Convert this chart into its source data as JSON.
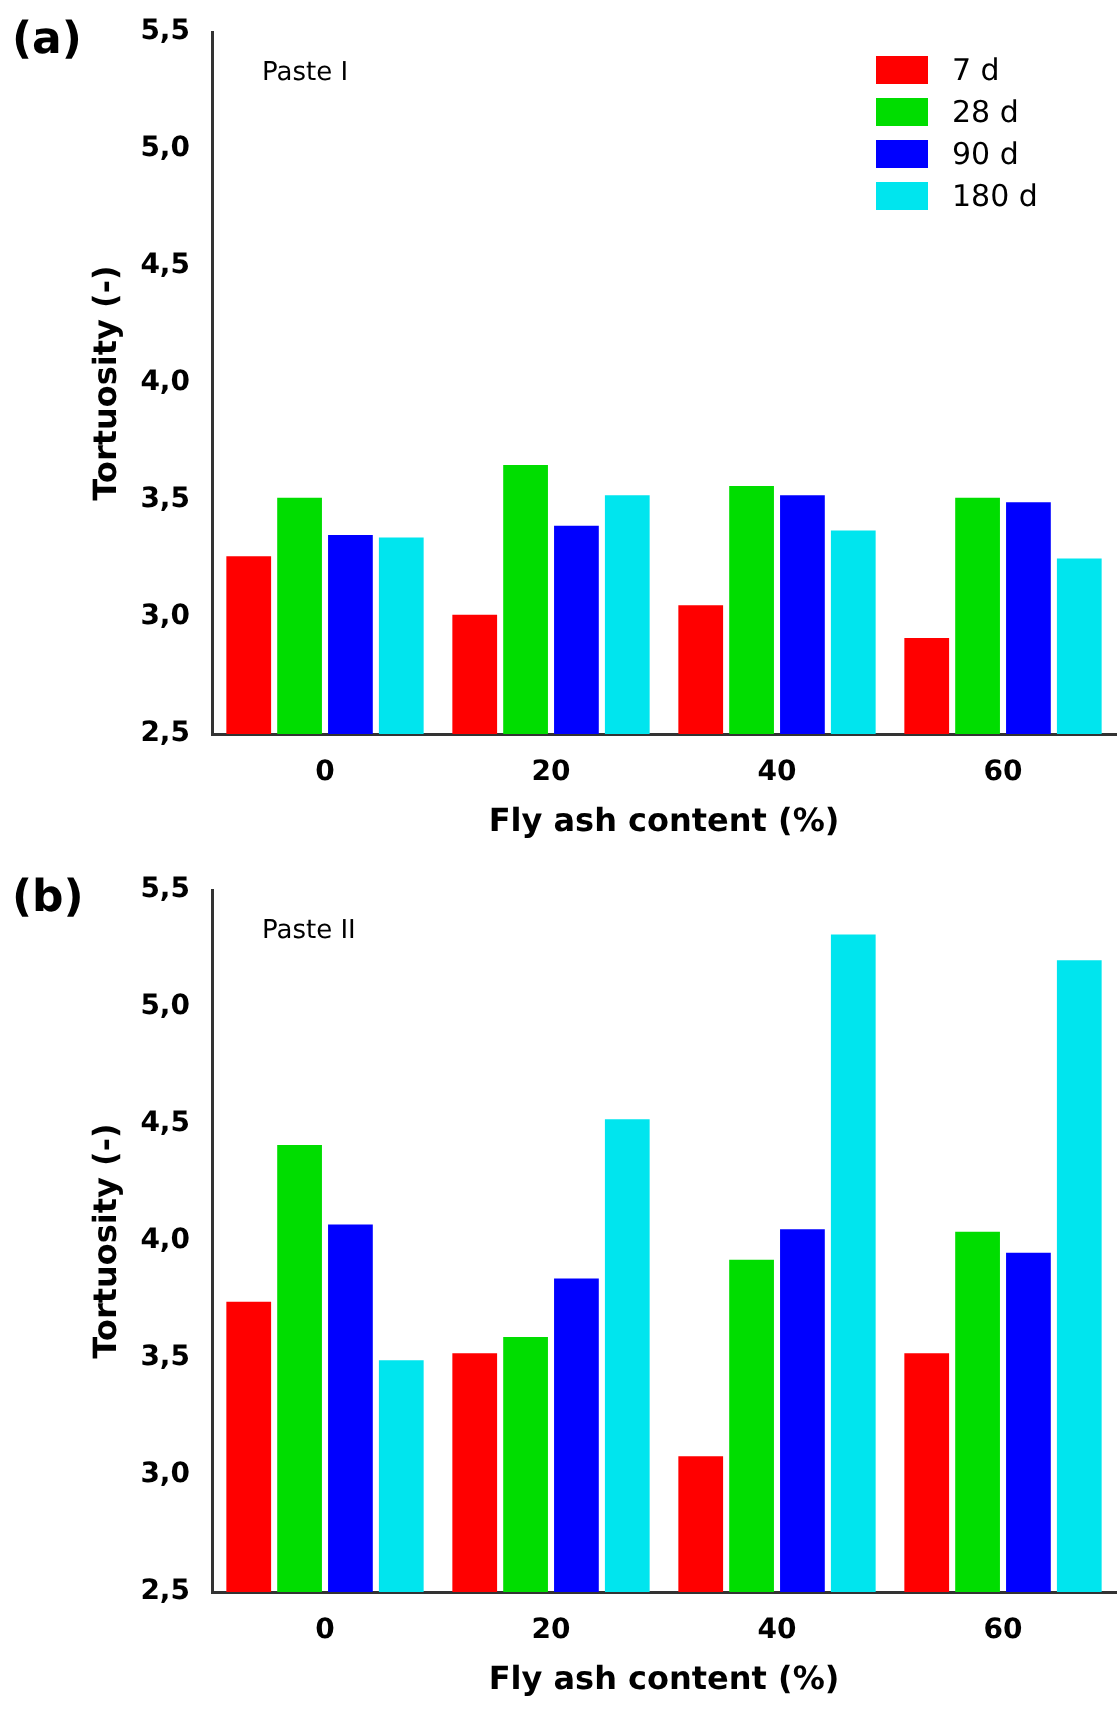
{
  "chart_data": [
    {
      "type": "bar",
      "title": "Paste I",
      "annotations": [
        "(a)"
      ],
      "xlabel": "Fly ash content (%)",
      "ylabel": "Tortuosity (-)",
      "categories": [
        "0",
        "20",
        "40",
        "60"
      ],
      "series": [
        {
          "name": "7 d",
          "color": "#ff0000",
          "values": [
            3.26,
            3.01,
            3.05,
            2.91
          ]
        },
        {
          "name": "28 d",
          "color": "#00dd00",
          "values": [
            3.51,
            3.65,
            3.56,
            3.51
          ]
        },
        {
          "name": "90 d",
          "color": "#0000ff",
          "values": [
            3.35,
            3.39,
            3.52,
            3.49
          ]
        },
        {
          "name": "180 d",
          "color": "#00e5ee",
          "values": [
            3.34,
            3.52,
            3.37,
            3.25
          ]
        }
      ],
      "ylim": [
        2.5,
        5.5
      ],
      "yticks": [
        {
          "value": 2.5,
          "label": "2,5"
        },
        {
          "value": 3,
          "label": "3,0"
        },
        {
          "value": 3.5,
          "label": "3,5"
        },
        {
          "value": 4,
          "label": "4,0"
        },
        {
          "value": 4.5,
          "label": "4,5"
        },
        {
          "value": 5,
          "label": "5,0"
        },
        {
          "value": 5.5,
          "label": "5,5"
        }
      ],
      "grid": false,
      "legend": "top right"
    },
    {
      "type": "bar",
      "title": "Paste II",
      "annotations": [
        "(b)"
      ],
      "xlabel": "Fly ash content (%)",
      "ylabel": "Tortuosity (-)",
      "categories": [
        "0",
        "20",
        "40",
        "60"
      ],
      "series": [
        {
          "color": "#ff0000",
          "values": [
            3.74,
            3.52,
            3.08,
            3.52
          ]
        },
        {
          "color": "#00dd00",
          "values": [
            4.41,
            3.59,
            3.92,
            4.04
          ]
        },
        {
          "color": "#0000ff",
          "values": [
            4.07,
            3.84,
            4.05,
            3.95
          ]
        },
        {
          "color": "#00e5ee",
          "values": [
            3.49,
            4.52,
            5.31,
            5.2
          ]
        }
      ],
      "ylim": [
        2.5,
        5.5
      ],
      "yticks": [
        {
          "value": 2.5,
          "label": "2,5"
        },
        {
          "value": 3,
          "label": "3,0"
        },
        {
          "value": 3.5,
          "label": "3,5"
        },
        {
          "value": 4,
          "label": "4,0"
        },
        {
          "value": 4.5,
          "label": "4,5"
        },
        {
          "value": 5,
          "label": "5,0"
        },
        {
          "value": 5.5,
          "label": "5,5"
        }
      ],
      "grid": false,
      "legend": false
    }
  ]
}
